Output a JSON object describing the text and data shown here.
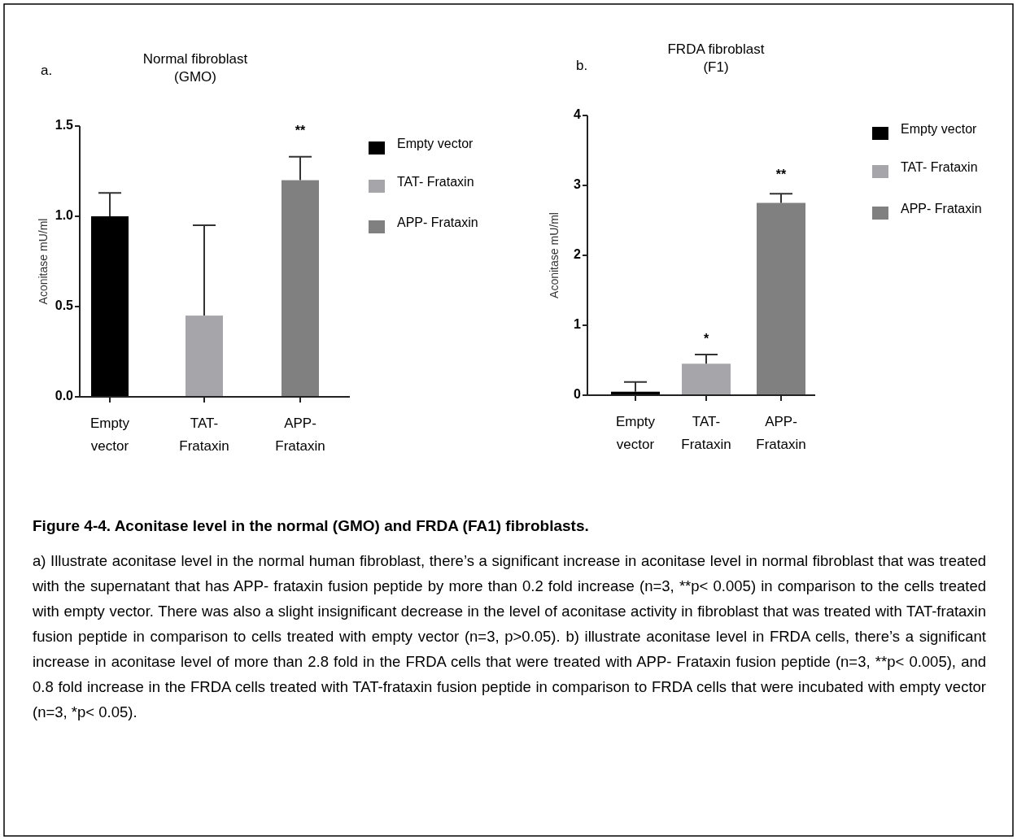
{
  "chart_data": [
    {
      "type": "bar",
      "title": "Normal fibroblast (GMO)",
      "ylabel": "Aconitase mU/ml",
      "categories": [
        "Empty vector",
        "TAT- Frataxin",
        "APP- Frataxin"
      ],
      "stacked": true,
      "legend": "right",
      "ylim": [
        0,
        1.5
      ],
      "yticks": [
        {
          "value": 0,
          "label": "0.0"
        },
        {
          "value": 0.5,
          "label": "0.5"
        },
        {
          "value": 1,
          "label": "1.0"
        },
        {
          "value": 1.5,
          "label": "1.5"
        }
      ],
      "series": [
        {
          "name": "Empty vector",
          "color": "#000000",
          "values": [
            1.0,
            null,
            null
          ],
          "errors": [
            [
              1.0,
              1.13
            ],
            null,
            null
          ]
        },
        {
          "name": "TAT- Frataxin",
          "color": "#a6a6aa",
          "values": [
            null,
            0.45,
            null
          ],
          "errors": [
            null,
            [
              0.45,
              0.95
            ],
            null
          ]
        },
        {
          "name": "APP- Frataxin",
          "color": "#808080",
          "values": [
            null,
            null,
            1.2
          ],
          "errors": [
            null,
            null,
            [
              1.2,
              1.33
            ]
          ]
        }
      ],
      "annotations": [
        "a.",
        "**"
      ]
    },
    {
      "type": "bar",
      "title": "FRDA fibroblast (F1)",
      "ylabel": "Aconitase mU/ml",
      "categories": [
        "Empty vector",
        "TAT- Frataxin",
        "APP- Frataxin"
      ],
      "stacked": true,
      "legend": "right",
      "ylim": [
        0,
        4
      ],
      "yticks": [
        0,
        1,
        2,
        3,
        4
      ],
      "series": [
        {
          "name": "Empty vector",
          "color": "#000000",
          "values": [
            0.05,
            null,
            null
          ],
          "errors": [
            [
              0.05,
              0.19
            ],
            null,
            null
          ]
        },
        {
          "name": "TAT- Frataxin",
          "color": "#a6a6aa",
          "values": [
            null,
            0.45,
            null
          ],
          "errors": [
            null,
            [
              0.45,
              0.58
            ],
            null
          ]
        },
        {
          "name": "APP- Frataxin",
          "color": "#808080",
          "values": [
            null,
            null,
            2.75
          ],
          "errors": [
            null,
            null,
            [
              2.75,
              2.88
            ]
          ]
        }
      ],
      "annotations": [
        "b.",
        "*",
        "**"
      ]
    },
    {
      "type": "other",
      "title": "Figure 4-4. Aconitase level in the normal (GMO) and FRDA (FA1) fibroblasts.",
      "annotations": [
        "a) Illustrate aconitase level in the normal human fibroblast, there’s a significant increase in aconitase level in normal fibroblast that was treated with the supernatant that has APP- frataxin fusion peptide by more than 0.2 fold increase (n=3, **p< 0.005) in comparison to the cells treated with empty vector. There was also a slight insignificant decrease in the level of aconitase activity in fibroblast that was treated with TAT-frataxin fusion peptide in comparison to cells treated with empty vector (n=3, p>0.05). b) illustrate aconitase level in FRDA cells, there’s a significant increase in aconitase level of more than 2.8 fold in the FRDA cells that were treated with APP- Frataxin fusion peptide (n=3, **p< 0.005), and 0.8 fold increase in the FRDA cells treated with TAT-frataxin fusion peptide in comparison to FRDA cells that were incubated with empty vector (n=3, *p< 0.05)."
      ]
    }
  ]
}
